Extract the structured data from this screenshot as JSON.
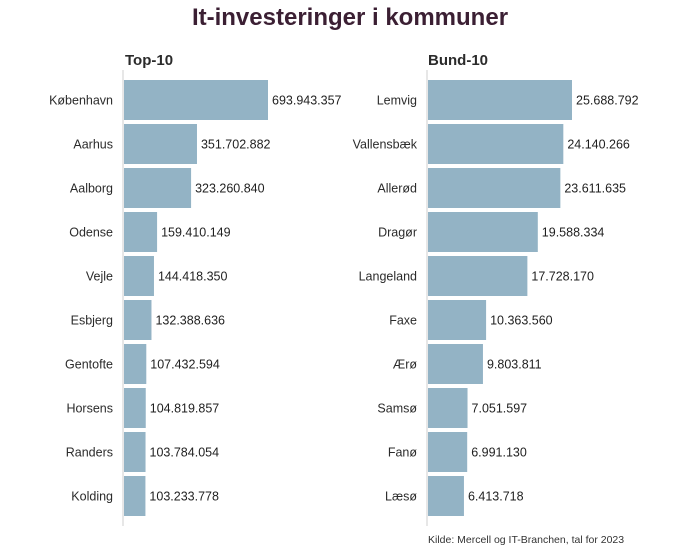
{
  "title": "It-investeringer i kommuner",
  "source": "Kilde: Mercell og IT-Branchen, tal for 2023",
  "colors": {
    "bar": "#93b3c5",
    "axis": "#cfcfcf",
    "title": "#3b1f33"
  },
  "chart_data": [
    {
      "type": "bar",
      "orientation": "horizontal",
      "title": "Top-10",
      "categories": [
        "København",
        "Aarhus",
        "Aalborg",
        "Odense",
        "Vejle",
        "Esbjerg",
        "Gentofte",
        "Horsens",
        "Randers",
        "Kolding"
      ],
      "values": [
        693943357,
        351702882,
        323260840,
        159410149,
        144418350,
        132388636,
        107432594,
        104819857,
        103784054,
        103233778
      ],
      "value_labels": [
        "693.943.357",
        "351.702.882",
        "323.260.840",
        "159.410.149",
        "144.418.350",
        "132.388.636",
        "107.432.594",
        "104.819.857",
        "103.784.054",
        "103.233.778"
      ]
    },
    {
      "type": "bar",
      "orientation": "horizontal",
      "title": "Bund-10",
      "categories": [
        "Lemvig",
        "Vallensbæk",
        "Allerød",
        "Dragør",
        "Langeland",
        "Faxe",
        "Ærø",
        "Samsø",
        "Fanø",
        "Læsø"
      ],
      "values": [
        25688792,
        24140266,
        23611635,
        19588334,
        17728170,
        10363560,
        9803811,
        7051597,
        6991130,
        6413718
      ],
      "value_labels": [
        "25.688.792",
        "24.140.266",
        "23.611.635",
        "19.588.334",
        "17.728.170",
        "10.363.560",
        "9.803.811",
        "7.051.597",
        "6.991.130",
        "6.413.718"
      ]
    }
  ]
}
